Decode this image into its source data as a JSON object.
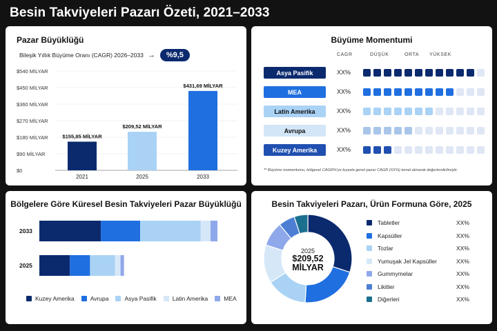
{
  "page_title": "Besin Takviyeleri Pazarı Özeti, 2021–2033",
  "colors": {
    "navy": "#0b2a6e",
    "blue": "#1f6fe0",
    "light_blue": "#a9d2f5",
    "pale_blue": "#d3e6f8",
    "periwinkle": "#8fa8ea",
    "teal": "#1b6f8f"
  },
  "market_size": {
    "title": "Pazar Büyüklüğü",
    "cagr_label": "Bileşik Yıllık Büyüme Oranı (CAGR) 2026–2033",
    "cagr_arrow": "→",
    "cagr_value": "%9,5"
  },
  "momentum": {
    "title": "Büyüme Momentumi",
    "col_cagr": "CAGR",
    "col_low": "DÜŞÜK",
    "col_mid": "ORTA",
    "col_high": "YÜKSEK",
    "rows": [
      {
        "label": "Asya Pasifik",
        "value": "XX%",
        "level": 11,
        "bg": "#0b2a6e",
        "fg": "#ffffff",
        "color": "#0b2a6e"
      },
      {
        "label": "MEA",
        "value": "XX%",
        "level": 9,
        "bg": "#1f6fe0",
        "fg": "#ffffff",
        "color": "#1f6fe0"
      },
      {
        "label": "Latin Amerika",
        "value": "XX%",
        "level": 7,
        "bg": "#a9d2f5",
        "fg": "#111111",
        "color": "#a9d2f5"
      },
      {
        "label": "Avrupa",
        "value": "XX%",
        "level": 5,
        "bg": "#d3e6f8",
        "fg": "#111111",
        "color": "#a9c6ea"
      },
      {
        "label": "Kuzey Amerika",
        "value": "XX%",
        "level": 3,
        "bg": "#1f4fb0",
        "fg": "#ffffff",
        "color": "#1f4fb0"
      }
    ],
    "footnote": "** Büyüme momentumu, bölgesel CAGR%'ye kıyasla genel pazar CAGR (XX%) temel alınarak değerlendirilmiştir."
  },
  "regional": {
    "title": "Bölgelere Göre Küresel Besin Takviyeleri Pazar Büyüklüğü"
  },
  "form": {
    "title": "Besin Takviyeleri Pazarı, Ürün Formuna Göre, 2025",
    "center_year": "2025",
    "center_value": "$209,52",
    "center_unit": "MİLYAR",
    "items": [
      {
        "label": "Tabletler",
        "value": "XX%",
        "color": "#0b2a6e"
      },
      {
        "label": "Kapsüller",
        "value": "XX%",
        "color": "#1f6fe0"
      },
      {
        "label": "Tozlar",
        "value": "XX%",
        "color": "#a9d2f5"
      },
      {
        "label": "Yumuşak Jel Kapsüller",
        "value": "XX%",
        "color": "#d6e8f8"
      },
      {
        "label": "Gummymelar",
        "value": "XX%",
        "color": "#8fa8ea"
      },
      {
        "label": "Likitler",
        "value": "XX%",
        "color": "#4c7fd4"
      },
      {
        "label": "Diğerleri",
        "value": "XX%",
        "color": "#1b6f8f"
      }
    ]
  },
  "chart_data": [
    {
      "type": "bar",
      "title": "Pazar Büyüklüğü",
      "categories": [
        "2021",
        "2025",
        "2033"
      ],
      "values": [
        155.85,
        209.52,
        431.69
      ],
      "value_labels": [
        "$155,85 MİLYAR",
        "$209,52 MİLYAR",
        "$431,69 MİLYAR"
      ],
      "y_ticks": [
        "$0",
        "$90 MİLYAR",
        "$180 MİLYAR",
        "$270 MİLYAR",
        "$360 MİLYAR",
        "$450 MİLYAR",
        "$540 MİLYAR"
      ],
      "ylim": [
        0,
        540
      ],
      "colors": [
        "#0b2a6e",
        "#a9d2f5",
        "#1f6fe0"
      ],
      "grid": true
    },
    {
      "type": "bar",
      "orientation": "horizontal",
      "stacked": true,
      "title": "Bölgelere Göre Küresel Besin Takviyeleri Pazar Büyüklüğü",
      "categories": [
        "2033",
        "2025"
      ],
      "series": [
        {
          "name": "Kuzey Amerika",
          "color": "#0b2a6e",
          "values": [
            125,
            62
          ]
        },
        {
          "name": "Avrupa",
          "color": "#1f6fe0",
          "values": [
            80,
            41
          ]
        },
        {
          "name": "Asya Pasifik",
          "color": "#a9d2f5",
          "values": [
            123,
            51
          ]
        },
        {
          "name": "Latin Amerika",
          "color": "#d6e8f8",
          "values": [
            20,
            11
          ]
        },
        {
          "name": "MEA",
          "color": "#8fa8ea",
          "values": [
            14,
            7
          ]
        }
      ],
      "legend": "bottom"
    },
    {
      "type": "pie",
      "donut": true,
      "title": "Besin Takviyeleri Pazarı, Ürün Formuna Göre, 2025",
      "labels": [
        "Tabletler",
        "Kapsüller",
        "Tozlar",
        "Yumuşak Jel Kapsüller",
        "Gummymelar",
        "Likitler",
        "Diğerleri"
      ],
      "values": [
        30,
        21,
        15,
        14,
        9,
        6,
        5
      ],
      "colors": [
        "#0b2a6e",
        "#1f6fe0",
        "#a9d2f5",
        "#d6e8f8",
        "#8fa8ea",
        "#4c7fd4",
        "#1b6f8f"
      ],
      "legend": "right"
    }
  ]
}
